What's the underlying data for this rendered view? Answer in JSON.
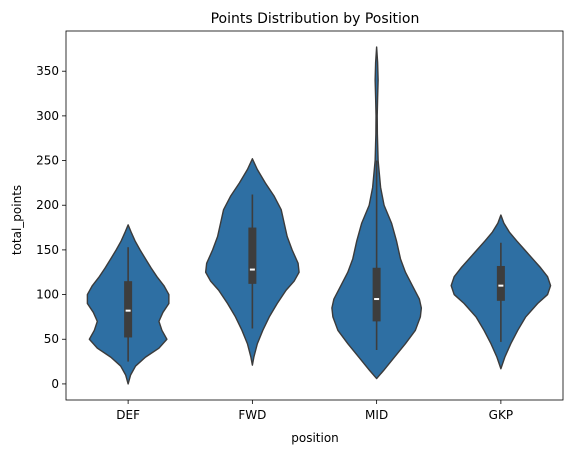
{
  "chart_data": {
    "type": "violin",
    "title": "Points Distribution by Position",
    "xlabel": "position",
    "ylabel": "total_points",
    "ylim": [
      -18,
      395
    ],
    "yticks": [
      0,
      50,
      100,
      150,
      200,
      250,
      300,
      350
    ],
    "categories": [
      "DEF",
      "FWD",
      "MID",
      "GKP"
    ],
    "fill_color": "#2e6fa3",
    "edge_color": "#3b3b3b",
    "violins": [
      {
        "category": "DEF",
        "q1": 52,
        "median": 82,
        "q3": 115,
        "whisker_low": 25,
        "whisker_high": 153,
        "profile": [
          [
            0,
            0
          ],
          [
            10,
            0.05
          ],
          [
            20,
            0.15
          ],
          [
            30,
            0.35
          ],
          [
            40,
            0.62
          ],
          [
            50,
            0.78
          ],
          [
            60,
            0.68
          ],
          [
            70,
            0.62
          ],
          [
            80,
            0.7
          ],
          [
            90,
            0.82
          ],
          [
            100,
            0.82
          ],
          [
            110,
            0.72
          ],
          [
            120,
            0.58
          ],
          [
            130,
            0.46
          ],
          [
            140,
            0.35
          ],
          [
            150,
            0.24
          ],
          [
            160,
            0.14
          ],
          [
            170,
            0.06
          ],
          [
            178,
            0
          ]
        ]
      },
      {
        "category": "FWD",
        "q1": 112,
        "median": 128,
        "q3": 175,
        "whisker_low": 62,
        "whisker_high": 212,
        "profile": [
          [
            21,
            0
          ],
          [
            30,
            0.03
          ],
          [
            45,
            0.1
          ],
          [
            60,
            0.21
          ],
          [
            75,
            0.34
          ],
          [
            90,
            0.5
          ],
          [
            105,
            0.68
          ],
          [
            115,
            0.84
          ],
          [
            125,
            0.94
          ],
          [
            135,
            0.92
          ],
          [
            150,
            0.8
          ],
          [
            165,
            0.7
          ],
          [
            180,
            0.64
          ],
          [
            195,
            0.58
          ],
          [
            210,
            0.44
          ],
          [
            225,
            0.26
          ],
          [
            240,
            0.1
          ],
          [
            252,
            0
          ]
        ]
      },
      {
        "category": "MID",
        "q1": 70,
        "median": 95,
        "q3": 130,
        "whisker_low": 38,
        "whisker_high": 250,
        "profile": [
          [
            6,
            0
          ],
          [
            15,
            0.14
          ],
          [
            30,
            0.36
          ],
          [
            45,
            0.58
          ],
          [
            60,
            0.78
          ],
          [
            75,
            0.88
          ],
          [
            85,
            0.9
          ],
          [
            95,
            0.86
          ],
          [
            110,
            0.72
          ],
          [
            125,
            0.58
          ],
          [
            140,
            0.48
          ],
          [
            160,
            0.4
          ],
          [
            180,
            0.3
          ],
          [
            200,
            0.15
          ],
          [
            220,
            0.08
          ],
          [
            250,
            0.03
          ],
          [
            280,
            0.015
          ],
          [
            300,
            0.012
          ],
          [
            320,
            0.02
          ],
          [
            340,
            0.03
          ],
          [
            360,
            0.02
          ],
          [
            377,
            0
          ]
        ]
      },
      {
        "category": "GKP",
        "q1": 93,
        "median": 110,
        "q3": 132,
        "whisker_low": 47,
        "whisker_high": 158,
        "profile": [
          [
            17,
            0
          ],
          [
            30,
            0.08
          ],
          [
            45,
            0.2
          ],
          [
            60,
            0.34
          ],
          [
            75,
            0.5
          ],
          [
            90,
            0.74
          ],
          [
            100,
            0.94
          ],
          [
            110,
            1.0
          ],
          [
            120,
            0.94
          ],
          [
            130,
            0.8
          ],
          [
            140,
            0.64
          ],
          [
            150,
            0.48
          ],
          [
            160,
            0.32
          ],
          [
            170,
            0.17
          ],
          [
            180,
            0.06
          ],
          [
            189,
            0
          ]
        ]
      }
    ]
  }
}
